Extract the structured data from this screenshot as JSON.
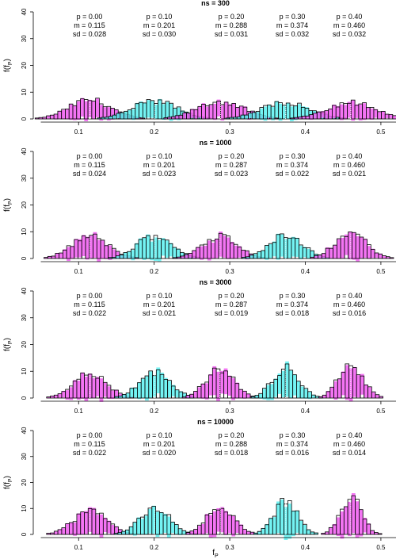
{
  "x_axis_label": "f",
  "x_axis_label_sub": "P",
  "y_axis_label": "f(f",
  "y_axis_label_sub": "P",
  "y_axis_label_close": ")",
  "colors": {
    "magenta": "#f15cf1",
    "cyan": "#5cf1f1",
    "overlap": "#9a7bf0",
    "outline": "#000000"
  },
  "chart_data": [
    {
      "type": "bar",
      "title": "ns = 300",
      "xlim": [
        0.04,
        0.52
      ],
      "ylim": [
        0,
        40
      ],
      "y_ticks": [
        0,
        10,
        20,
        30,
        40
      ],
      "x_ticks": [
        0.1,
        0.2,
        0.3,
        0.4,
        0.5
      ],
      "x_tick_labels": [
        "0.1",
        "0.2",
        "0.3",
        "0.4",
        "0.5"
      ],
      "annotations": [
        {
          "p": "p = 0.00",
          "m": "m = 0.115",
          "sd": "sd = 0.028"
        },
        {
          "p": "p = 0.10",
          "m": "m = 0.201",
          "sd": "sd = 0.030"
        },
        {
          "p": "p = 0.20",
          "m": "m = 0.288",
          "sd": "sd = 0.031"
        },
        {
          "p": "p = 0.30",
          "m": "m = 0.374",
          "sd": "sd = 0.032"
        },
        {
          "p": "p = 0.40",
          "m": "m = 0.460",
          "sd": "sd = 0.032"
        }
      ],
      "series": [
        {
          "p": 0.0,
          "mean": 0.115,
          "sd": 0.028
        },
        {
          "p": 0.1,
          "mean": 0.201,
          "sd": 0.03
        },
        {
          "p": 0.2,
          "mean": 0.288,
          "sd": 0.031
        },
        {
          "p": 0.3,
          "mean": 0.374,
          "sd": 0.032
        },
        {
          "p": 0.4,
          "mean": 0.46,
          "sd": 0.032
        }
      ]
    },
    {
      "type": "bar",
      "title": "ns = 1000",
      "xlim": [
        0.04,
        0.52
      ],
      "ylim": [
        0,
        40
      ],
      "y_ticks": [
        0,
        10,
        20,
        30,
        40
      ],
      "x_ticks": [
        0.1,
        0.2,
        0.3,
        0.4,
        0.5
      ],
      "x_tick_labels": [
        "0.1",
        "0.2",
        "0.3",
        "0.4",
        "0.5"
      ],
      "annotations": [
        {
          "p": "p = 0.00",
          "m": "m = 0.115",
          "sd": "sd = 0.024"
        },
        {
          "p": "p = 0.10",
          "m": "m = 0.201",
          "sd": "sd = 0.023"
        },
        {
          "p": "p = 0.20",
          "m": "m = 0.287",
          "sd": "sd = 0.023"
        },
        {
          "p": "p = 0.30",
          "m": "m = 0.374",
          "sd": "sd = 0.022"
        },
        {
          "p": "p = 0.40",
          "m": "m = 0.460",
          "sd": "sd = 0.021"
        }
      ],
      "series": [
        {
          "p": 0.0,
          "mean": 0.115,
          "sd": 0.024
        },
        {
          "p": 0.1,
          "mean": 0.201,
          "sd": 0.023
        },
        {
          "p": 0.2,
          "mean": 0.287,
          "sd": 0.023
        },
        {
          "p": 0.3,
          "mean": 0.374,
          "sd": 0.022
        },
        {
          "p": 0.4,
          "mean": 0.46,
          "sd": 0.021
        }
      ]
    },
    {
      "type": "bar",
      "title": "ns = 3000",
      "xlim": [
        0.04,
        0.52
      ],
      "ylim": [
        0,
        40
      ],
      "y_ticks": [
        0,
        10,
        20,
        30,
        40
      ],
      "x_ticks": [
        0.1,
        0.2,
        0.3,
        0.4,
        0.5
      ],
      "x_tick_labels": [
        "0.1",
        "0.2",
        "0.3",
        "0.4",
        "0.5"
      ],
      "annotations": [
        {
          "p": "p = 0.00",
          "m": "m = 0.115",
          "sd": "sd = 0.022"
        },
        {
          "p": "p = 0.10",
          "m": "m = 0.201",
          "sd": "sd = 0.021"
        },
        {
          "p": "p = 0.20",
          "m": "m = 0.287",
          "sd": "sd = 0.019"
        },
        {
          "p": "p = 0.30",
          "m": "m = 0.374",
          "sd": "sd = 0.018"
        },
        {
          "p": "p = 0.40",
          "m": "m = 0.460",
          "sd": "sd = 0.016"
        }
      ],
      "series": [
        {
          "p": 0.0,
          "mean": 0.115,
          "sd": 0.022
        },
        {
          "p": 0.1,
          "mean": 0.201,
          "sd": 0.021
        },
        {
          "p": 0.2,
          "mean": 0.287,
          "sd": 0.019
        },
        {
          "p": 0.3,
          "mean": 0.374,
          "sd": 0.018
        },
        {
          "p": 0.4,
          "mean": 0.46,
          "sd": 0.016
        }
      ]
    },
    {
      "type": "bar",
      "title": "ns = 10000",
      "xlim": [
        0.04,
        0.52
      ],
      "ylim": [
        0,
        40
      ],
      "y_ticks": [
        0,
        10,
        20,
        30,
        40
      ],
      "x_ticks": [
        0.1,
        0.2,
        0.3,
        0.4,
        0.5
      ],
      "x_tick_labels": [
        "0.1",
        "0.2",
        "0.3",
        "0.4",
        "0.5"
      ],
      "annotations": [
        {
          "p": "p = 0.00",
          "m": "m = 0.115",
          "sd": "sd = 0.022"
        },
        {
          "p": "p = 0.10",
          "m": "m = 0.201",
          "sd": "sd = 0.020"
        },
        {
          "p": "p = 0.20",
          "m": "m = 0.288",
          "sd": "sd = 0.018"
        },
        {
          "p": "p = 0.30",
          "m": "m = 0.374",
          "sd": "sd = 0.016"
        },
        {
          "p": "p = 0.40",
          "m": "m = 0.460",
          "sd": "sd = 0.014"
        }
      ],
      "series": [
        {
          "p": 0.0,
          "mean": 0.115,
          "sd": 0.022
        },
        {
          "p": 0.1,
          "mean": 0.201,
          "sd": 0.02
        },
        {
          "p": 0.2,
          "mean": 0.288,
          "sd": 0.018
        },
        {
          "p": 0.3,
          "mean": 0.374,
          "sd": 0.016
        },
        {
          "p": 0.4,
          "mean": 0.46,
          "sd": 0.014
        }
      ]
    }
  ]
}
